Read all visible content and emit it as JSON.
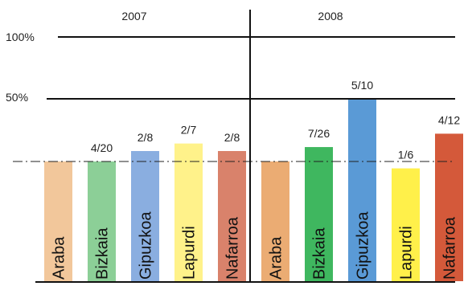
{
  "chart_data": {
    "type": "bar",
    "y_tick_labels": [
      "100%",
      "50%"
    ],
    "y_tick_values": [
      100,
      50
    ],
    "ylim": [
      0,
      100
    ],
    "reference_line": 20,
    "reference_line_style": "dash-dot",
    "grid": false,
    "groups": [
      {
        "label": "2007",
        "bars": [
          {
            "category": "Araba",
            "value": 0,
            "label": "",
            "color": "#f2c79b"
          },
          {
            "category": "Bizkaia",
            "value": 20,
            "label": "4/20",
            "color": "#8ccf97"
          },
          {
            "category": "Gipuzkoa",
            "value": 25,
            "label": "2/8",
            "color": "#8aaee0"
          },
          {
            "category": "Lapurdi",
            "value": 28.6,
            "label": "2/7",
            "color": "#fff28a"
          },
          {
            "category": "Nafarroa",
            "value": 25,
            "label": "2/8",
            "color": "#d9826b"
          }
        ]
      },
      {
        "label": "2008",
        "bars": [
          {
            "category": "Araba",
            "value": 0,
            "label": "",
            "color": "#ebac73"
          },
          {
            "category": "Bizkaia",
            "value": 26.9,
            "label": "7/26",
            "color": "#3fb75f"
          },
          {
            "category": "Gipuzkoa",
            "value": 50,
            "label": "5/10",
            "color": "#5a9ad6"
          },
          {
            "category": "Lapurdi",
            "value": 16.7,
            "label": "1/6",
            "color": "#fff04a"
          },
          {
            "category": "Nafarroa",
            "value": 33.3,
            "label": "4/12",
            "color": "#d4593a"
          }
        ]
      }
    ]
  }
}
